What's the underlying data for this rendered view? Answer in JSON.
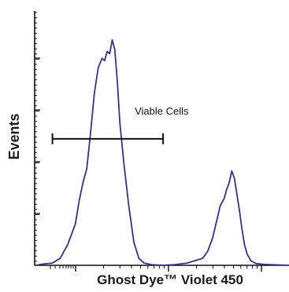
{
  "chart_data": {
    "type": "histogram",
    "xlabel": "Ghost Dye™ Violet 450",
    "ylabel": "Events",
    "x_scale": "log",
    "xlim": [
      0.0,
      1.0
    ],
    "ylim": [
      0,
      1.0
    ],
    "grid": false,
    "legend": "none",
    "series": [
      {
        "color": "#3b2e8c",
        "x": [
          0.005,
          0.03,
          0.07,
          0.1,
          0.13,
          0.16,
          0.175,
          0.19,
          0.205,
          0.22,
          0.235,
          0.25,
          0.265,
          0.275,
          0.285,
          0.295,
          0.305,
          0.315,
          0.325,
          0.335,
          0.35,
          0.37,
          0.39,
          0.41,
          0.43,
          0.46,
          0.5,
          0.55,
          0.6,
          0.63,
          0.66,
          0.68,
          0.7,
          0.715,
          0.73,
          0.745,
          0.755,
          0.765,
          0.775,
          0.785,
          0.795,
          0.805,
          0.815,
          0.825,
          0.835,
          0.85,
          0.87,
          0.9,
          0.95,
          1.0
        ],
        "y": [
          0.0,
          0.005,
          0.01,
          0.03,
          0.09,
          0.18,
          0.28,
          0.36,
          0.42,
          0.58,
          0.75,
          0.86,
          0.9,
          0.89,
          0.93,
          0.92,
          0.98,
          0.94,
          0.8,
          0.62,
          0.45,
          0.26,
          0.1,
          0.03,
          0.01,
          0.003,
          0.0,
          0.003,
          0.01,
          0.02,
          0.03,
          0.06,
          0.12,
          0.19,
          0.26,
          0.29,
          0.33,
          0.36,
          0.41,
          0.38,
          0.31,
          0.24,
          0.16,
          0.09,
          0.05,
          0.02,
          0.008,
          0.004,
          0.002,
          0.0
        ]
      }
    ],
    "annotations": [
      {
        "type": "gate",
        "label": "Viable Cells",
        "x_start": 0.07,
        "x_end": 0.505,
        "y": 0.55
      }
    ]
  }
}
